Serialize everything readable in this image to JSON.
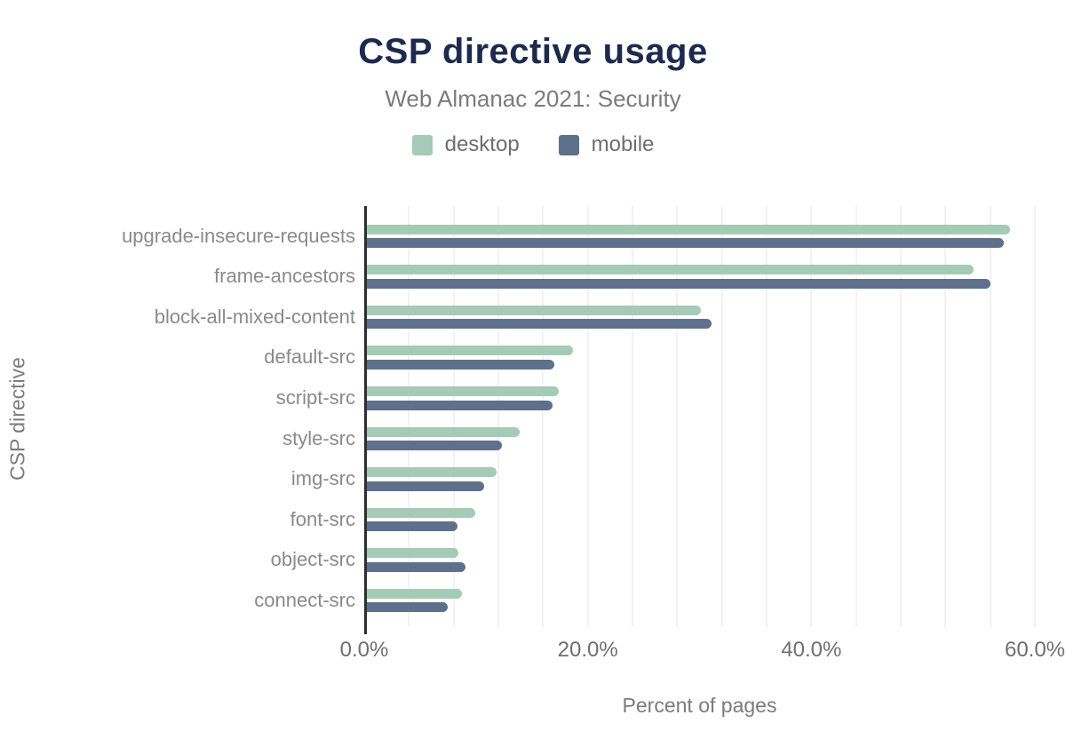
{
  "header": {
    "title": "CSP directive usage",
    "subtitle": "Web Almanac 2021: Security"
  },
  "chart_data": {
    "type": "bar",
    "orientation": "horizontal",
    "title": "CSP directive usage",
    "subtitle": "Web Almanac 2021: Security",
    "xlabel": "Percent of pages",
    "ylabel": "CSP directive",
    "xlim": [
      0,
      60
    ],
    "x_ticks": [
      {
        "value": 0,
        "label": "0.0%"
      },
      {
        "value": 20,
        "label": "20.0%"
      },
      {
        "value": 40,
        "label": "40.0%"
      },
      {
        "value": 60,
        "label": "60.0%"
      }
    ],
    "minor_gridline_step_percent": 4,
    "grid": true,
    "legend_position": "top",
    "categories": [
      "upgrade-insecure-requests",
      "frame-ancestors",
      "block-all-mixed-content",
      "default-src",
      "script-src",
      "style-src",
      "img-src",
      "font-src",
      "object-src",
      "connect-src"
    ],
    "series": [
      {
        "name": "desktop",
        "color": "#a5cab6",
        "values": [
          57.5,
          54.3,
          29.9,
          18.4,
          17.2,
          13.7,
          11.6,
          9.7,
          8.2,
          8.5
        ]
      },
      {
        "name": "mobile",
        "color": "#5e708c",
        "values": [
          57.0,
          55.8,
          30.8,
          16.8,
          16.6,
          12.1,
          10.5,
          8.1,
          8.8,
          7.2
        ]
      }
    ],
    "colors": {
      "title": "#1c2a4e",
      "subtitle": "#7b7b7b",
      "axis_title": "#7b7b7b",
      "tick_label": "#6f6f6f",
      "category_label": "#8a8a8a",
      "axis_line": "#2e2e2e",
      "gridline": "#f2f2f2",
      "background": "#ffffff"
    }
  }
}
